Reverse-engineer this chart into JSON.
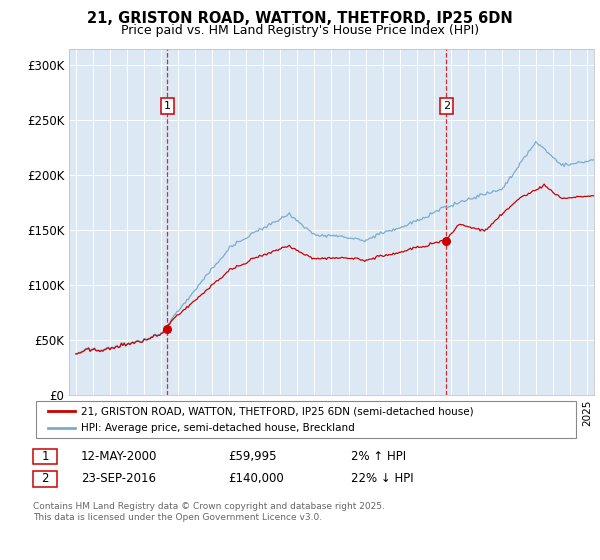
{
  "title_line1": "21, GRISTON ROAD, WATTON, THETFORD, IP25 6DN",
  "title_line2": "Price paid vs. HM Land Registry's House Price Index (HPI)",
  "legend_line1": "21, GRISTON ROAD, WATTON, THETFORD, IP25 6DN (semi-detached house)",
  "legend_line2": "HPI: Average price, semi-detached house, Breckland",
  "annotation1_label": "1",
  "annotation1_date": "12-MAY-2000",
  "annotation1_price": "£59,995",
  "annotation1_hpi": "2% ↑ HPI",
  "annotation2_label": "2",
  "annotation2_date": "23-SEP-2016",
  "annotation2_price": "£140,000",
  "annotation2_hpi": "22% ↓ HPI",
  "footnote": "Contains HM Land Registry data © Crown copyright and database right 2025.\nThis data is licensed under the Open Government Licence v3.0.",
  "ylabel_ticks": [
    "£0",
    "£50K",
    "£100K",
    "£150K",
    "£200K",
    "£250K",
    "£300K"
  ],
  "ytick_values": [
    0,
    50000,
    100000,
    150000,
    200000,
    250000,
    300000
  ],
  "ylim": [
    0,
    315000
  ],
  "background_color": "#dce9f5",
  "red_color": "#cc0000",
  "blue_color": "#7aadcc",
  "sale1_year": 2000.37,
  "sale1_price": 59995,
  "sale2_year": 2016.73,
  "sale2_price": 140000,
  "xmin": 1994.6,
  "xmax": 2025.4
}
